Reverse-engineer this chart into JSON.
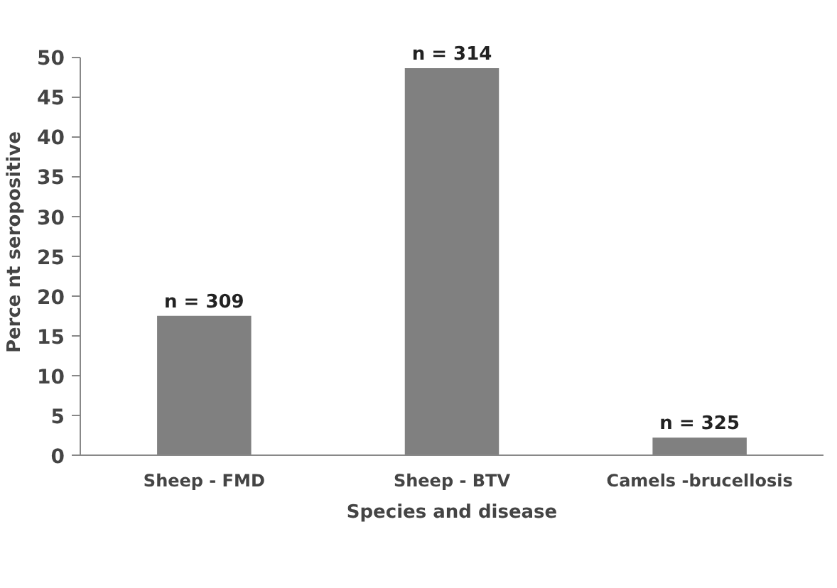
{
  "chart_data": {
    "type": "bar",
    "xlabel": "Species and disease",
    "ylabel": "Perce nt seropositive",
    "categories": [
      "Sheep - FMD",
      "Sheep - BTV",
      "Camels -brucellosis"
    ],
    "values": [
      17.5,
      48.6,
      2.2
    ],
    "color": "#808080",
    "ylim": [
      0,
      50
    ],
    "yticks": [
      0,
      5,
      10,
      15,
      20,
      25,
      30,
      35,
      40,
      45,
      50
    ],
    "grid": false,
    "annotations": [
      {
        "text": "n = 309",
        "x": "Sheep - FMD",
        "y": 17.5
      },
      {
        "text": "n = 314",
        "x": "Sheep - BTV",
        "y": 48.6
      },
      {
        "text": "n = 325",
        "x": "Camels -brucellosis",
        "y": 2.2
      }
    ]
  }
}
